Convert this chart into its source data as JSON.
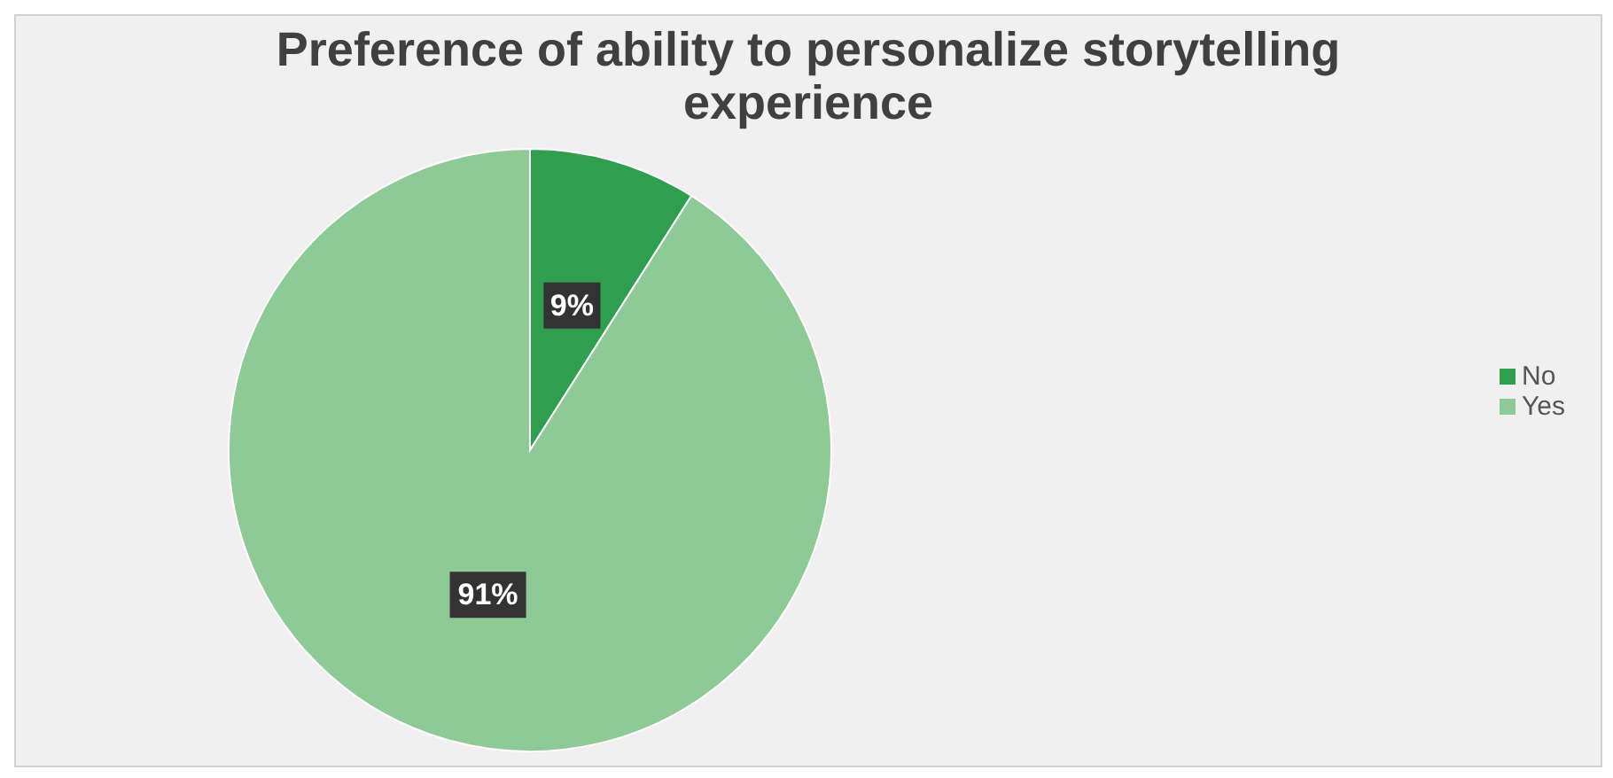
{
  "chart_data": {
    "type": "pie",
    "title": "Preference of ability to personalize storytelling experience",
    "categories": [
      "No",
      "Yes"
    ],
    "values": [
      9,
      91
    ],
    "colors": [
      "#2f9e4f",
      "#8dca96"
    ],
    "value_labels": [
      "9%",
      "91%"
    ],
    "legend": "right"
  }
}
